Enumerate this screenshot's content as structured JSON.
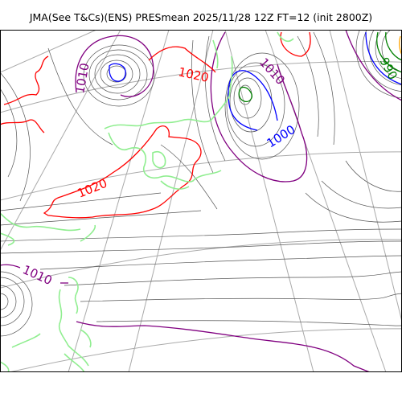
{
  "title": "JMA(See T&Cs)(ENS) PRESmean 2025/11/28 12Z FT=12 (init 2800Z)",
  "colors": {
    "isobar_fine": "#555555",
    "isobar_990": "#008000",
    "isobar_1000": "#0000ff",
    "isobar_1010": "#800080",
    "isobar_1020": "#ff0000",
    "coast": "#90ee90",
    "graticule": "#aaaaaa",
    "extra_contour": "#ffa500"
  },
  "labels": [
    {
      "text": "1010",
      "color_key": "isobar_1010"
    },
    {
      "text": "1020",
      "color_key": "isobar_1020"
    },
    {
      "text": "1010",
      "color_key": "isobar_1010"
    },
    {
      "text": "1000",
      "color_key": "isobar_1000"
    },
    {
      "text": "990",
      "color_key": "isobar_990"
    },
    {
      "text": "1020",
      "color_key": "isobar_1020"
    },
    {
      "text": "1010",
      "color_key": "isobar_1010"
    }
  ]
}
